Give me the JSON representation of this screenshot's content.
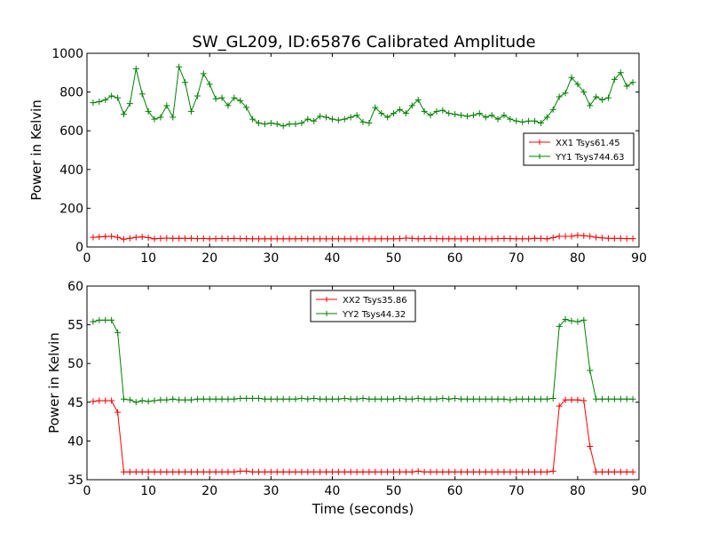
{
  "figure": {
    "title": "SW_GL209, ID:65876 Calibrated Amplitude"
  },
  "chart_data": [
    {
      "type": "line",
      "title": "SW_GL209, ID:65876 Calibrated Amplitude",
      "xlabel": "",
      "ylabel": "Power in Kelvin",
      "xlim": [
        0,
        90
      ],
      "ylim": [
        0,
        1000
      ],
      "xticks": [
        0,
        10,
        20,
        30,
        40,
        50,
        60,
        70,
        80,
        90
      ],
      "yticks": [
        0,
        200,
        400,
        600,
        800,
        1000
      ],
      "grid": false,
      "legend": "right",
      "series": [
        {
          "name": "XX1 Tsys61.45",
          "color": "#ff0000",
          "x": [
            1,
            2,
            3,
            4,
            5,
            6,
            7,
            8,
            9,
            10,
            11,
            12,
            13,
            14,
            15,
            16,
            17,
            18,
            19,
            20,
            21,
            22,
            23,
            24,
            25,
            26,
            27,
            28,
            29,
            30,
            31,
            32,
            33,
            34,
            35,
            36,
            37,
            38,
            39,
            40,
            41,
            42,
            43,
            44,
            45,
            46,
            47,
            48,
            49,
            50,
            51,
            52,
            53,
            54,
            55,
            56,
            57,
            58,
            59,
            60,
            61,
            62,
            63,
            64,
            65,
            66,
            67,
            68,
            69,
            70,
            71,
            72,
            73,
            74,
            75,
            76,
            77,
            78,
            79,
            80,
            81,
            82,
            83,
            84,
            85,
            86,
            87,
            88,
            89
          ],
          "y": [
            50,
            52,
            54,
            55,
            50,
            40,
            45,
            50,
            52,
            48,
            42,
            44,
            46,
            44,
            45,
            44,
            45,
            43,
            44,
            42,
            43,
            44,
            43,
            44,
            43,
            43,
            42,
            42,
            42,
            42,
            42,
            42,
            42,
            42,
            43,
            42,
            42,
            42,
            42,
            42,
            42,
            42,
            42,
            42,
            42,
            42,
            42,
            42,
            42,
            42,
            43,
            46,
            44,
            42,
            43,
            44,
            43,
            42,
            42,
            42,
            42,
            42,
            42,
            42,
            42,
            42,
            43,
            44,
            43,
            42,
            42,
            42,
            45,
            44,
            42,
            48,
            55,
            55,
            55,
            60,
            58,
            55,
            50,
            47,
            45,
            44,
            44,
            43,
            43
          ]
        },
        {
          "name": "YY1 Tsys744.63",
          "color": "#008000",
          "x": [
            1,
            2,
            3,
            4,
            5,
            6,
            7,
            8,
            9,
            10,
            11,
            12,
            13,
            14,
            15,
            16,
            17,
            18,
            19,
            20,
            21,
            22,
            23,
            24,
            25,
            26,
            27,
            28,
            29,
            30,
            31,
            32,
            33,
            34,
            35,
            36,
            37,
            38,
            39,
            40,
            41,
            42,
            43,
            44,
            45,
            46,
            47,
            48,
            49,
            50,
            51,
            52,
            53,
            54,
            55,
            56,
            57,
            58,
            59,
            60,
            61,
            62,
            63,
            64,
            65,
            66,
            67,
            68,
            69,
            70,
            71,
            72,
            73,
            74,
            75,
            76,
            77,
            78,
            79,
            80,
            81,
            82,
            83,
            84,
            85,
            86,
            87,
            88,
            89
          ],
          "y": [
            745,
            750,
            760,
            780,
            770,
            685,
            740,
            920,
            790,
            700,
            660,
            670,
            730,
            670,
            930,
            850,
            700,
            780,
            895,
            840,
            765,
            770,
            730,
            770,
            755,
            720,
            660,
            640,
            635,
            640,
            635,
            625,
            635,
            635,
            640,
            660,
            650,
            675,
            670,
            660,
            655,
            660,
            670,
            680,
            645,
            640,
            720,
            690,
            670,
            690,
            710,
            690,
            730,
            760,
            700,
            680,
            700,
            705,
            690,
            685,
            680,
            675,
            680,
            690,
            670,
            680,
            660,
            680,
            660,
            650,
            645,
            650,
            650,
            640,
            670,
            710,
            775,
            795,
            875,
            840,
            800,
            730,
            775,
            760,
            770,
            865,
            900,
            830,
            850
          ]
        }
      ]
    },
    {
      "type": "line",
      "title": "",
      "xlabel": "Time (seconds)",
      "ylabel": "Power in Kelvin",
      "xlim": [
        0,
        90
      ],
      "ylim": [
        35,
        60
      ],
      "xticks": [
        0,
        10,
        20,
        30,
        40,
        50,
        60,
        70,
        80,
        90
      ],
      "yticks": [
        35,
        40,
        45,
        50,
        55,
        60
      ],
      "grid": false,
      "legend": "top-center",
      "series": [
        {
          "name": "XX2 Tsys35.86",
          "color": "#ff0000",
          "x": [
            1,
            2,
            3,
            4,
            5,
            6,
            7,
            8,
            9,
            10,
            11,
            12,
            13,
            14,
            15,
            16,
            17,
            18,
            19,
            20,
            21,
            22,
            23,
            24,
            25,
            26,
            27,
            28,
            29,
            30,
            31,
            32,
            33,
            34,
            35,
            36,
            37,
            38,
            39,
            40,
            41,
            42,
            43,
            44,
            45,
            46,
            47,
            48,
            49,
            50,
            51,
            52,
            53,
            54,
            55,
            56,
            57,
            58,
            59,
            60,
            61,
            62,
            63,
            64,
            65,
            66,
            67,
            68,
            69,
            70,
            71,
            72,
            73,
            74,
            75,
            76,
            77,
            78,
            79,
            80,
            81,
            82,
            83,
            84,
            85,
            86,
            87,
            88,
            89
          ],
          "y": [
            45.1,
            45.2,
            45.2,
            45.2,
            43.7,
            36.0,
            36.0,
            36.0,
            36.0,
            36.0,
            36.0,
            36.0,
            36.0,
            36.0,
            36.0,
            36.0,
            36.0,
            36.0,
            36.0,
            36.0,
            36.0,
            36.0,
            36.0,
            36.0,
            36.1,
            36.1,
            36.0,
            36.0,
            36.0,
            36.0,
            36.0,
            36.0,
            36.0,
            36.0,
            36.0,
            36.0,
            36.0,
            36.0,
            36.0,
            36.0,
            36.0,
            36.0,
            36.0,
            36.0,
            36.0,
            36.0,
            36.0,
            36.0,
            36.0,
            36.0,
            36.0,
            36.0,
            36.0,
            36.1,
            36.0,
            36.0,
            36.0,
            36.0,
            36.0,
            36.0,
            36.0,
            36.0,
            36.0,
            36.0,
            36.0,
            36.0,
            36.0,
            36.0,
            36.0,
            36.0,
            36.0,
            36.0,
            36.0,
            36.0,
            36.0,
            36.1,
            44.5,
            45.3,
            45.3,
            45.3,
            45.2,
            39.3,
            36.0,
            36.0,
            36.0,
            36.0,
            36.0,
            36.0,
            36.0
          ]
        },
        {
          "name": "YY2 Tsys44.32",
          "color": "#008000",
          "x": [
            1,
            2,
            3,
            4,
            5,
            6,
            7,
            8,
            9,
            10,
            11,
            12,
            13,
            14,
            15,
            16,
            17,
            18,
            19,
            20,
            21,
            22,
            23,
            24,
            25,
            26,
            27,
            28,
            29,
            30,
            31,
            32,
            33,
            34,
            35,
            36,
            37,
            38,
            39,
            40,
            41,
            42,
            43,
            44,
            45,
            46,
            47,
            48,
            49,
            50,
            51,
            52,
            53,
            54,
            55,
            56,
            57,
            58,
            59,
            60,
            61,
            62,
            63,
            64,
            65,
            66,
            67,
            68,
            69,
            70,
            71,
            72,
            73,
            74,
            75,
            76,
            77,
            78,
            79,
            80,
            81,
            82,
            83,
            84,
            85,
            86,
            87,
            88,
            89
          ],
          "y": [
            55.4,
            55.6,
            55.6,
            55.6,
            54.0,
            45.4,
            45.3,
            45.0,
            45.2,
            45.1,
            45.2,
            45.3,
            45.3,
            45.4,
            45.3,
            45.3,
            45.3,
            45.4,
            45.4,
            45.4,
            45.4,
            45.4,
            45.4,
            45.4,
            45.5,
            45.5,
            45.5,
            45.5,
            45.4,
            45.4,
            45.4,
            45.4,
            45.4,
            45.4,
            45.5,
            45.4,
            45.5,
            45.4,
            45.4,
            45.4,
            45.4,
            45.5,
            45.4,
            45.4,
            45.5,
            45.4,
            45.4,
            45.4,
            45.4,
            45.4,
            45.5,
            45.4,
            45.4,
            45.5,
            45.4,
            45.4,
            45.4,
            45.5,
            45.4,
            45.5,
            45.4,
            45.4,
            45.4,
            45.4,
            45.4,
            45.4,
            45.4,
            45.4,
            45.3,
            45.4,
            45.4,
            45.4,
            45.4,
            45.4,
            45.4,
            45.5,
            54.8,
            55.7,
            55.5,
            55.4,
            55.6,
            49.1,
            45.4,
            45.4,
            45.4,
            45.4,
            45.4,
            45.4,
            45.4
          ]
        }
      ]
    }
  ]
}
